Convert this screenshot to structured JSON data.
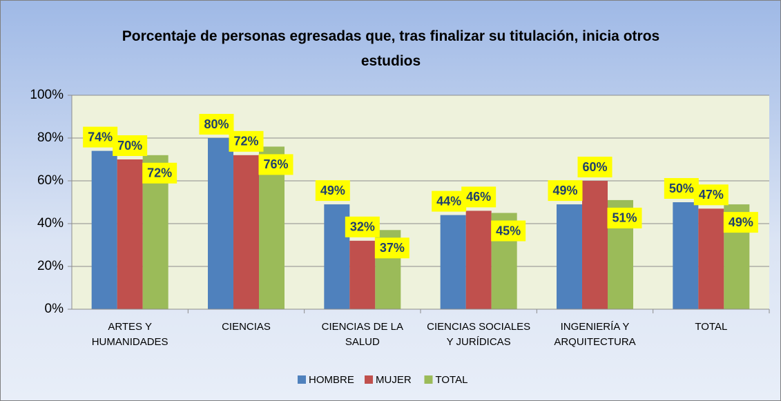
{
  "chart_data": {
    "type": "bar",
    "title": "Porcentaje de personas egresadas que, tras finalizar su titulación, inicia otros estudios",
    "categories": [
      "ARTES Y HUMANIDADES",
      "CIENCIAS",
      "CIENCIAS DE LA SALUD",
      "CIENCIAS SOCIALES Y JURÍDICAS",
      "INGENIERÍA Y ARQUITECTURA",
      "TOTAL"
    ],
    "series": [
      {
        "name": "HOMBRE",
        "color": "#4f81bd",
        "values": [
          74,
          80,
          49,
          44,
          49,
          50
        ],
        "value_labels": [
          "74%",
          "80%",
          "49%",
          "44%",
          "49%",
          "50%"
        ]
      },
      {
        "name": "MUJER",
        "color": "#c0504d",
        "values": [
          70,
          72,
          32,
          46,
          60,
          47
        ],
        "value_labels": [
          "70%",
          "72%",
          "32%",
          "46%",
          "60%",
          "47%"
        ]
      },
      {
        "name": "TOTAL",
        "color": "#9bbb59",
        "values": [
          72,
          76,
          37,
          45,
          51,
          49
        ],
        "value_labels": [
          "72%",
          "76%",
          "37%",
          "45%",
          "51%",
          "49%"
        ]
      }
    ],
    "ylim": [
      0,
      100
    ],
    "yticks": [
      {
        "value": 0,
        "label": "0%"
      },
      {
        "value": 20,
        "label": "20%"
      },
      {
        "value": 40,
        "label": "40%"
      },
      {
        "value": 60,
        "label": "60%"
      },
      {
        "value": 80,
        "label": "80%"
      },
      {
        "value": 100,
        "label": "100%"
      }
    ],
    "grid": true,
    "legend": "bottom"
  }
}
